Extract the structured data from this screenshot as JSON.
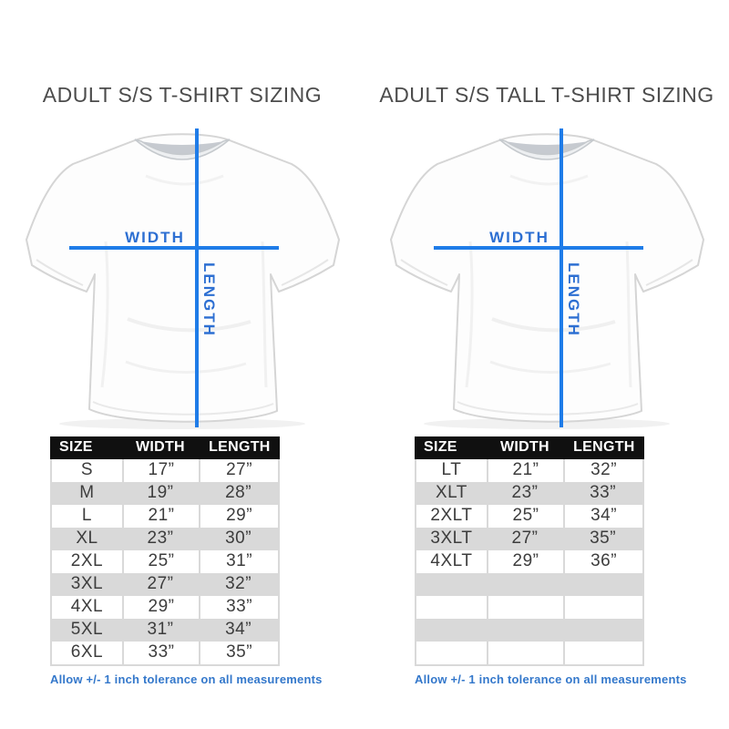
{
  "colors": {
    "measure_line": "#1f7ce8",
    "measure_label": "#2d6fd2",
    "note_text": "#3478cb",
    "header_bg": "#101010",
    "header_text": "#ffffff",
    "row_alt_gray": "#d9d9d9",
    "cell_text": "#3d3d3d",
    "title_text": "#4c4c4c"
  },
  "panels": [
    {
      "title": "ADULT S/S T-SHIRT SIZING",
      "shirt": {
        "width_label": "WIDTH",
        "length_label": "LENGTH"
      },
      "table": {
        "headers": [
          "SIZE",
          "WIDTH",
          "LENGTH"
        ],
        "rows": [
          [
            "S",
            "17”",
            "27”"
          ],
          [
            "M",
            "19”",
            "28”"
          ],
          [
            "L",
            "21”",
            "29”"
          ],
          [
            "XL",
            "23”",
            "30”"
          ],
          [
            "2XL",
            "25”",
            "31”"
          ],
          [
            "3XL",
            "27”",
            "32”"
          ],
          [
            "4XL",
            "29”",
            "33”"
          ],
          [
            "5XL",
            "31”",
            "34”"
          ],
          [
            "6XL",
            "33”",
            "35”"
          ]
        ]
      },
      "note": "Allow +/- 1 inch tolerance on all measurements"
    },
    {
      "title": "ADULT S/S TALL T-SHIRT SIZING",
      "shirt": {
        "width_label": "WIDTH",
        "length_label": "LENGTH"
      },
      "table": {
        "headers": [
          "SIZE",
          "WIDTH",
          "LENGTH"
        ],
        "rows": [
          [
            "LT",
            "21”",
            "32”"
          ],
          [
            "XLT",
            "23”",
            "33”"
          ],
          [
            "2XLT",
            "25”",
            "34”"
          ],
          [
            "3XLT",
            "27”",
            "35”"
          ],
          [
            "4XLT",
            "29”",
            "36”"
          ],
          [
            "",
            "",
            ""
          ],
          [
            "",
            "",
            ""
          ],
          [
            "",
            "",
            ""
          ],
          [
            "",
            "",
            ""
          ]
        ]
      },
      "note": "Allow +/- 1 inch tolerance on all measurements"
    }
  ]
}
